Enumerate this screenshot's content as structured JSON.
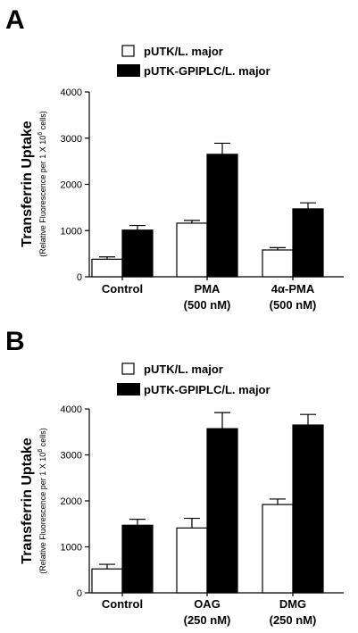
{
  "chart_data": [
    {
      "panel": "A",
      "type": "bar",
      "categories": [
        {
          "line1": "Control",
          "line2": ""
        },
        {
          "line1": "PMA",
          "line2": "(500 nM)"
        },
        {
          "line1": "4α-PMA",
          "line2": "(500 nM)"
        }
      ],
      "series": [
        {
          "name": "pUTK/L. major",
          "color": "#ffffff",
          "values": [
            380,
            1160,
            580
          ],
          "errors": [
            50,
            60,
            50
          ]
        },
        {
          "name": "pUTK-GPIPLC/L. major",
          "color": "#000000",
          "values": [
            1010,
            2650,
            1470
          ],
          "errors": [
            100,
            240,
            130
          ]
        }
      ],
      "ylabel": "Transferrin Uptake",
      "ylabel_sub": "(Relative Fluorescence per 1 X 10",
      "ylabel_sub_sup": "6",
      "ylabel_sub_end": " cells)",
      "ylim": [
        0,
        4000
      ],
      "yticks": [
        0,
        1000,
        2000,
        3000,
        4000
      ]
    },
    {
      "panel": "B",
      "type": "bar",
      "categories": [
        {
          "line1": "Control",
          "line2": ""
        },
        {
          "line1": "OAG",
          "line2": "(250 nM)"
        },
        {
          "line1": "DMG",
          "line2": "(250 nM)"
        }
      ],
      "series": [
        {
          "name": "pUTK/L. major",
          "color": "#ffffff",
          "values": [
            520,
            1410,
            1920
          ],
          "errors": [
            100,
            210,
            120
          ]
        },
        {
          "name": "pUTK-GPIPLC/L. major",
          "color": "#000000",
          "values": [
            1470,
            3570,
            3650
          ],
          "errors": [
            130,
            350,
            230
          ]
        }
      ],
      "ylabel": "Transferrin Uptake",
      "ylabel_sub": "(Relative Fluorescence per 1 X 10",
      "ylabel_sub_sup": "6",
      "ylabel_sub_end": " cells)",
      "ylim": [
        0,
        4000
      ],
      "yticks": [
        0,
        1000,
        2000,
        3000,
        4000
      ]
    }
  ]
}
